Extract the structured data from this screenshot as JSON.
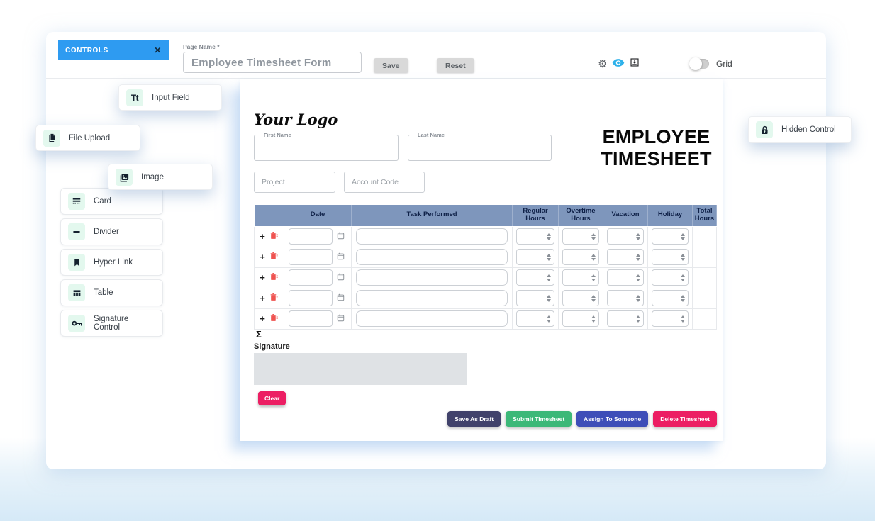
{
  "toolbar": {
    "page_name_label": "Page Name *",
    "page_name_value": "Employee Timesheet Form",
    "save_label": "Save",
    "reset_label": "Reset",
    "grid_label": "Grid",
    "gear_glyph": "⚙"
  },
  "controls_panel": {
    "title": "CONTROLS",
    "close_glyph": "✕",
    "floating_items": [
      {
        "label": "Input Field",
        "icon": "text-input-icon",
        "glyph": "Tt"
      },
      {
        "label": "File Upload",
        "icon": "file-upload-icon"
      },
      {
        "label": "Image",
        "icon": "image-icon"
      },
      {
        "label": "Hidden Control",
        "icon": "lock-icon"
      }
    ],
    "items": [
      {
        "label": "Card",
        "icon": "card-icon"
      },
      {
        "label": "Divider",
        "icon": "divider-icon"
      },
      {
        "label": "Hyper Link",
        "icon": "bookmark-icon"
      },
      {
        "label": "Table",
        "icon": "table-icon"
      },
      {
        "label": "Signature Control",
        "icon": "key-icon"
      }
    ]
  },
  "form": {
    "logo_text": "Your Logo",
    "title_line1": "EMPLOYEE",
    "title_line2": "TIMESHEET",
    "fields": {
      "first_name_label": "First Name",
      "last_name_label": "Last Name",
      "project_placeholder": "Project",
      "account_code_placeholder": "Account Code"
    },
    "table": {
      "headers": [
        "Date",
        "Task Performed",
        "Regular Hours",
        "Overtime Hours",
        "Vacation",
        "Holiday",
        "Total Hours"
      ],
      "row_count": 5,
      "add_row_glyph": "+"
    },
    "sum_symbol": "Σ",
    "signature_label": "Signature",
    "clear_label": "Clear",
    "actions": [
      {
        "label": "Save As Draft",
        "color": "#41426b"
      },
      {
        "label": "Submit Timesheet",
        "color": "#3cb878"
      },
      {
        "label": "Assign To Someone",
        "color": "#3e4eb8"
      },
      {
        "label": "Delete Timesheet",
        "color": "#ec1e63"
      }
    ]
  },
  "colors": {
    "controls_header": "#2e9bf1",
    "table_header": "#7e96bc",
    "icon_tile": "#e3f8ee",
    "eye_icon": "#2eb1ea",
    "trash_icon": "#ef5350",
    "clear_button": "#ec1e63"
  }
}
